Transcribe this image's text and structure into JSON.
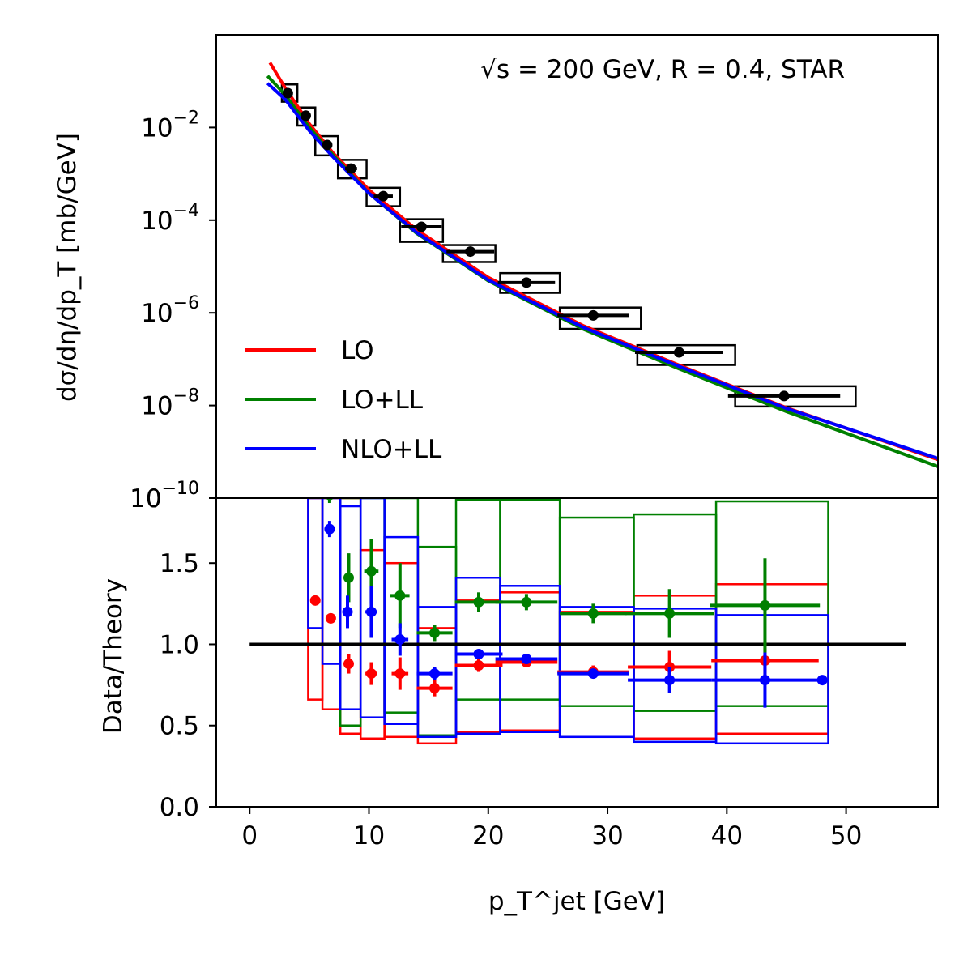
{
  "chart_data": [
    {
      "type": "line",
      "panel": "upper",
      "annotation": "√s = 200 GeV, R = 0.4, STAR",
      "ylabel": "dσ/dη/dp_T [mb/GeV]",
      "yscale": "log",
      "ylim": [
        1e-10,
        1
      ],
      "xlim": [
        -2.8,
        57.7
      ],
      "ytick_exponents": [
        "-2",
        "-4",
        "-6",
        "-8",
        "-10"
      ],
      "legend_placement": "lower-left",
      "grid": false,
      "series": [
        {
          "name": "LO",
          "color": "#ff0000",
          "x": [
            1.7,
            3,
            5,
            7,
            10,
            14,
            20,
            28,
            36,
            45,
            57.7
          ],
          "y": [
            0.25,
            0.07,
            0.012,
            0.0028,
            0.00045,
            6.2e-05,
            5.8e-06,
            5.2e-07,
            7.4e-08,
            8.9e-09,
            6.8e-10
          ]
        },
        {
          "name": "LO+LL",
          "color": "#008000",
          "x": [
            1.5,
            3,
            5,
            7,
            10,
            14,
            20,
            28,
            36,
            45,
            57.7
          ],
          "y": [
            0.13,
            0.05,
            0.01,
            0.0025,
            0.00038,
            5.2e-05,
            4.9e-06,
            4.4e-07,
            6.2e-08,
            7.4e-09,
            4.8e-10
          ]
        },
        {
          "name": "NLO+LL",
          "color": "#0000ff",
          "x": [
            1.5,
            3,
            5,
            7,
            10,
            14,
            20,
            28,
            36,
            45,
            57.7
          ],
          "y": [
            0.09,
            0.04,
            0.0085,
            0.0023,
            0.00038,
            5.4e-05,
            5.1e-06,
            4.8e-07,
            7e-08,
            8.6e-09,
            7.2e-10
          ]
        }
      ],
      "data_points": {
        "name": "STAR",
        "color": "#000000",
        "points": [
          {
            "x": 3.2,
            "y": 0.055,
            "xerr": 0.0,
            "box": [
              2.7,
              4.0,
              0.036,
              0.085
            ]
          },
          {
            "x": 4.7,
            "y": 0.018,
            "xerr": 0.0,
            "box": [
              4.0,
              5.5,
              0.011,
              0.027
            ]
          },
          {
            "x": 6.5,
            "y": 0.0042,
            "xerr": 0.0,
            "box": [
              5.5,
              7.4,
              0.0025,
              0.0065
            ]
          },
          {
            "x": 8.5,
            "y": 0.0013,
            "xerr": 0.5,
            "box": [
              7.4,
              9.8,
              0.0008,
              0.002
            ]
          },
          {
            "x": 11.2,
            "y": 0.00033,
            "xerr": 0.8,
            "box": [
              9.8,
              12.6,
              0.0002,
              0.0005
            ]
          },
          {
            "x": 14.4,
            "y": 7.2e-05,
            "xerr": 1.7,
            "box": [
              12.6,
              16.2,
              3.4e-05,
              0.000105
            ]
          },
          {
            "x": 18.5,
            "y": 2.1e-05,
            "xerr": 2.0,
            "box": [
              16.2,
              20.6,
              1.25e-05,
              2.9e-05
            ]
          },
          {
            "x": 23.2,
            "y": 4.5e-06,
            "xerr": 2.4,
            "box": [
              21.0,
              26.0,
              2.7e-06,
              7.2e-06
            ]
          },
          {
            "x": 28.8,
            "y": 8.8e-07,
            "xerr": 3.0,
            "box": [
              26.0,
              32.8,
              4.5e-07,
              1.3e-06
            ]
          },
          {
            "x": 36.0,
            "y": 1.4e-07,
            "xerr": 3.7,
            "box": [
              32.5,
              40.7,
              7.5e-08,
              2e-07
            ]
          },
          {
            "x": 44.8,
            "y": 1.6e-08,
            "xerr": 4.7,
            "box": [
              40.7,
              50.8,
              9.5e-09,
              2.6e-08
            ]
          }
        ]
      }
    },
    {
      "type": "scatter",
      "panel": "lower",
      "xlabel": "p_T^jet [GeV]",
      "ylabel": "Data/Theory",
      "ylim": [
        0.0,
        1.9
      ],
      "xlim": [
        -2.8,
        57.7
      ],
      "xticks": [
        "0",
        "10",
        "20",
        "30",
        "40",
        "50"
      ],
      "yticks": [
        "0.0",
        "0.5",
        "1.0",
        "1.5"
      ],
      "reference_line": {
        "y": 1.0,
        "x": [
          0,
          55
        ],
        "color": "#000000"
      },
      "series": [
        {
          "name": "LO",
          "color": "#ff0000",
          "points": [
            {
              "x": 5.5,
              "y": 1.27,
              "xerr": 0.0,
              "yerr": 0.0,
              "box": [
                4.9,
                6.1,
                0.66,
                1.9
              ]
            },
            {
              "x": 6.8,
              "y": 1.16,
              "xerr": 0.3,
              "yerr": 0.0,
              "box": [
                6.1,
                7.6,
                0.6,
                1.9
              ]
            },
            {
              "x": 8.3,
              "y": 0.88,
              "xerr": 0.3,
              "yerr": 0.06,
              "box": [
                7.6,
                9.3,
                0.45,
                1.9
              ]
            },
            {
              "x": 10.2,
              "y": 0.82,
              "xerr": 0.5,
              "yerr": 0.07,
              "box": [
                9.3,
                11.3,
                0.42,
                1.58
              ]
            },
            {
              "x": 12.6,
              "y": 0.82,
              "xerr": 0.7,
              "yerr": 0.1,
              "box": [
                11.3,
                14.1,
                0.43,
                1.5
              ]
            },
            {
              "x": 15.5,
              "y": 0.73,
              "xerr": 1.5,
              "yerr": 0.05,
              "box": [
                14.1,
                17.3,
                0.39,
                1.1
              ]
            },
            {
              "x": 19.2,
              "y": 0.87,
              "xerr": 2.0,
              "yerr": 0.04,
              "box": [
                17.3,
                21.0,
                0.46,
                1.27
              ]
            },
            {
              "x": 23.2,
              "y": 0.89,
              "xerr": 2.6,
              "yerr": 0.03,
              "box": [
                21.0,
                26.0,
                0.47,
                1.32
              ]
            },
            {
              "x": 28.8,
              "y": 0.83,
              "xerr": 3.0,
              "yerr": 0.04,
              "box": [
                26.0,
                32.2,
                0.43,
                1.2
              ]
            },
            {
              "x": 35.2,
              "y": 0.86,
              "xerr": 3.5,
              "yerr": 0.1,
              "box": [
                32.2,
                39.1,
                0.42,
                1.3
              ]
            },
            {
              "x": 43.2,
              "y": 0.9,
              "xerr": 4.5,
              "yerr": 0.12,
              "box": [
                39.1,
                48.5,
                0.45,
                1.37
              ]
            }
          ]
        },
        {
          "name": "LO+LL",
          "color": "#008000",
          "points": [
            {
              "x": 6.7,
              "y": 1.92,
              "xerr": 0.0,
              "yerr": 0.05,
              "box": [
                6.1,
                7.6,
                1.9,
                1.9
              ]
            },
            {
              "x": 8.3,
              "y": 1.41,
              "xerr": 0.4,
              "yerr": 0.15,
              "box": [
                7.6,
                9.3,
                0.5,
                1.9
              ]
            },
            {
              "x": 10.2,
              "y": 1.45,
              "xerr": 0.6,
              "yerr": 0.2,
              "box": [
                9.3,
                11.3,
                0.55,
                1.9
              ]
            },
            {
              "x": 12.6,
              "y": 1.3,
              "xerr": 0.8,
              "yerr": 0.2,
              "box": [
                11.3,
                14.1,
                0.58,
                1.9
              ]
            },
            {
              "x": 15.5,
              "y": 1.07,
              "xerr": 1.5,
              "yerr": 0.05,
              "box": [
                14.1,
                17.3,
                0.44,
                1.6
              ]
            },
            {
              "x": 19.2,
              "y": 1.26,
              "xerr": 2.0,
              "yerr": 0.06,
              "box": [
                17.3,
                21.0,
                0.66,
                1.89
              ]
            },
            {
              "x": 23.2,
              "y": 1.26,
              "xerr": 2.6,
              "yerr": 0.05,
              "box": [
                21.0,
                26.0,
                0.66,
                1.89
              ]
            },
            {
              "x": 28.8,
              "y": 1.19,
              "xerr": 2.8,
              "yerr": 0.06,
              "box": [
                26.0,
                32.2,
                0.62,
                1.78
              ]
            },
            {
              "x": 35.2,
              "y": 1.19,
              "xerr": 3.7,
              "yerr": 0.15,
              "box": [
                32.2,
                39.1,
                0.59,
                1.8
              ]
            },
            {
              "x": 43.2,
              "y": 1.24,
              "xerr": 4.6,
              "yerr": 0.29,
              "box": [
                39.1,
                48.5,
                0.62,
                1.88
              ]
            }
          ]
        },
        {
          "name": "NLO+LL",
          "color": "#0000ff",
          "points": [
            {
              "x": 6.7,
              "y": 1.71,
              "xerr": 0.0,
              "yerr": 0.05,
              "box": [
                4.9,
                6.1,
                1.1,
                1.9
              ]
            },
            {
              "x": 8.2,
              "y": 1.2,
              "xerr": 0.3,
              "yerr": 0.1,
              "box": [
                6.1,
                7.6,
                0.88,
                1.9
              ]
            },
            {
              "x": 10.2,
              "y": 1.2,
              "xerr": 0.5,
              "yerr": 0.16,
              "box": [
                7.6,
                9.3,
                0.6,
                1.85
              ]
            },
            {
              "x": 12.6,
              "y": 1.03,
              "xerr": 0.7,
              "yerr": 0.1,
              "box": [
                9.3,
                11.3,
                0.55,
                1.9
              ]
            },
            {
              "x": 15.5,
              "y": 0.82,
              "xerr": 1.5,
              "yerr": 0.04,
              "box": [
                11.3,
                14.1,
                0.51,
                1.66
              ]
            },
            {
              "x": 19.2,
              "y": 0.94,
              "xerr": 2.0,
              "yerr": 0.03,
              "box": [
                14.1,
                17.3,
                0.43,
                1.23
              ]
            },
            {
              "x": 23.2,
              "y": 0.91,
              "xerr": 2.6,
              "yerr": 0.03,
              "box": [
                17.3,
                21.0,
                0.45,
                1.41
              ]
            },
            {
              "x": 28.8,
              "y": 0.82,
              "xerr": 3.0,
              "yerr": 0.03,
              "box": [
                21.0,
                26.0,
                0.46,
                1.36
              ]
            },
            {
              "x": 35.2,
              "y": 0.78,
              "xerr": 3.5,
              "yerr": 0.08,
              "box": [
                26.0,
                32.2,
                0.43,
                1.23
              ]
            },
            {
              "x": 43.2,
              "y": 0.78,
              "xerr": 4.5,
              "yerr": 0.17,
              "box": [
                32.2,
                39.1,
                0.4,
                1.22
              ]
            },
            {
              "x": 48.0,
              "y": 0.78,
              "xerr": 0.0,
              "yerr": 0.0,
              "box": [
                39.1,
                48.5,
                0.39,
                1.18
              ]
            }
          ]
        }
      ]
    }
  ]
}
